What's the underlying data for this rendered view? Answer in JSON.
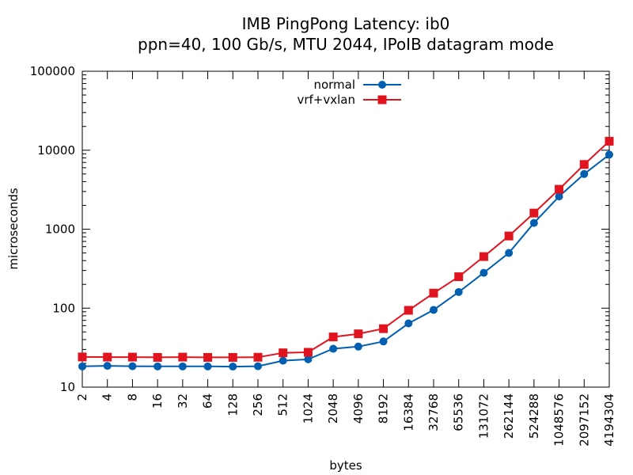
{
  "chart_data": {
    "type": "line",
    "title": "IMB PingPong Latency: ib0",
    "subtitle": "ppn=40, 100 Gb/s, MTU 2044, IPoIB datagram mode",
    "xlabel": "bytes",
    "ylabel": "microseconds",
    "xscale": "log2",
    "yscale": "log10",
    "xlim": [
      2,
      4194304
    ],
    "ylim": [
      10,
      100000
    ],
    "legend_position": "top-center",
    "x": [
      2,
      4,
      8,
      16,
      32,
      64,
      128,
      256,
      512,
      1024,
      2048,
      4096,
      8192,
      16384,
      32768,
      65536,
      131072,
      262144,
      524288,
      1048576,
      2097152,
      4194304
    ],
    "x_tick_labels": [
      "2",
      "4",
      "8",
      "16",
      "32",
      "64",
      "128",
      "256",
      "512",
      "1024",
      "2048",
      "4096",
      "8192",
      "16384",
      "32768",
      "65536",
      "131072",
      "262144",
      "524288",
      "1048576",
      "2097152",
      "4194304"
    ],
    "y_ticks": [
      10,
      100,
      1000,
      10000,
      100000
    ],
    "y_tick_labels": [
      "10",
      "100",
      "1000",
      "10000",
      "100000"
    ],
    "series": [
      {
        "name": "normal",
        "color": "#005fb0",
        "marker": "circle",
        "values": [
          18.3,
          18.6,
          18.4,
          18.3,
          18.3,
          18.3,
          18.2,
          18.4,
          21.6,
          22.5,
          30.6,
          32.6,
          37.9,
          64.1,
          95.0,
          160,
          280,
          500,
          1200,
          2600,
          5000,
          8800
        ]
      },
      {
        "name": "vrf+vxlan",
        "color": "#e0141e",
        "marker": "square",
        "values": [
          24.1,
          24.0,
          24.0,
          23.8,
          24.0,
          23.8,
          23.8,
          23.9,
          27.2,
          27.6,
          43.2,
          47.3,
          55.0,
          93.9,
          155,
          250,
          450,
          820,
          1600,
          3200,
          6600,
          13000
        ]
      }
    ]
  }
}
